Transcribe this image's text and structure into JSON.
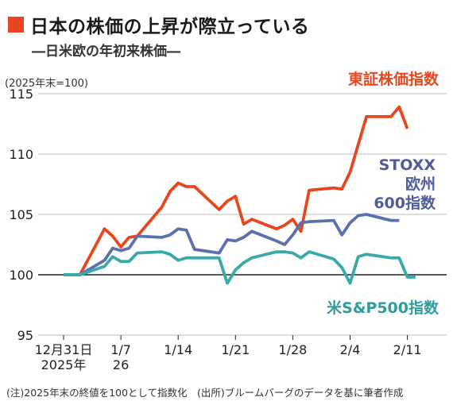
{
  "header": {
    "title": "日本の株価の上昇が際立っている",
    "subtitle": "―日米欧の年初来株価―",
    "unit": "(2025年末=100)"
  },
  "footnote": "(注)2025年末の終値を100として指数化　(出所)ブルームバーグのデータを基に筆者作成",
  "chart_data": {
    "type": "line",
    "ylim": [
      95,
      115
    ],
    "yticks": [
      95,
      100,
      105,
      110,
      115
    ],
    "xticks": [
      {
        "label": "12月31日",
        "label2": "2025年",
        "day": 0
      },
      {
        "label": "1/7",
        "label2": "26",
        "day": 7
      },
      {
        "label": "1/14",
        "label2": "",
        "day": 14
      },
      {
        "label": "1/21",
        "label2": "",
        "day": 21
      },
      {
        "label": "1/28",
        "label2": "",
        "day": 28
      },
      {
        "label": "2/4",
        "label2": "",
        "day": 35
      },
      {
        "label": "2/11",
        "label2": "",
        "day": 42
      }
    ],
    "x": [
      "12/31",
      "1/2",
      "1/5",
      "1/6",
      "1/7",
      "1/8",
      "1/9",
      "1/12",
      "1/13",
      "1/14",
      "1/15",
      "1/16",
      "1/19",
      "1/20",
      "1/21",
      "1/22",
      "1/23",
      "1/26",
      "1/27",
      "1/28",
      "1/29",
      "1/30",
      "2/2",
      "2/3",
      "2/4",
      "2/5",
      "2/6",
      "2/9",
      "2/10",
      "2/11",
      "2/12",
      "2/13"
    ],
    "x_day": [
      0,
      2,
      5,
      6,
      7,
      8,
      9,
      12,
      13,
      14,
      15,
      16,
      19,
      20,
      21,
      22,
      23,
      26,
      27,
      28,
      29,
      30,
      33,
      34,
      35,
      36,
      37,
      40,
      41,
      42,
      43,
      44
    ],
    "series": [
      {
        "name": "東証株価指数",
        "color": "#e8461e",
        "label_color": "#e8461e",
        "values": [
          100,
          100,
          103.8,
          103.2,
          102.3,
          103.1,
          103.2,
          105.6,
          106.9,
          107.6,
          107.3,
          107.3,
          105.4,
          106.1,
          106.5,
          104.2,
          104.6,
          103.8,
          104.1,
          104.6,
          103.6,
          107.0,
          107.2,
          107.1,
          108.5,
          110.8,
          113.1,
          113.1,
          113.9,
          112.1,
          null,
          null
        ]
      },
      {
        "name": "STOXX欧州600指数",
        "name_lines": [
          "STOXX",
          "欧州",
          "600指数"
        ],
        "color": "#5b70ad",
        "label_color": "#4d5d9a",
        "values": [
          100,
          100,
          101.2,
          102.2,
          102.0,
          102.2,
          103.2,
          103.1,
          103.3,
          103.8,
          103.7,
          102.1,
          101.8,
          102.9,
          102.8,
          103.1,
          103.6,
          102.8,
          102.5,
          103.3,
          104.3,
          104.4,
          104.5,
          103.3,
          104.3,
          104.9,
          105.0,
          104.5,
          104.5,
          null,
          null,
          null
        ]
      },
      {
        "name": "米S&P500指数",
        "color": "#3aaaa9",
        "label_color": "#2e9d9c",
        "values": [
          100,
          100,
          100.7,
          101.5,
          101.1,
          101.1,
          101.8,
          101.9,
          101.7,
          101.2,
          101.4,
          101.4,
          101.4,
          99.3,
          100.4,
          101.0,
          101.4,
          101.9,
          101.9,
          101.8,
          101.4,
          101.9,
          101.3,
          100.6,
          99.3,
          101.5,
          101.7,
          101.4,
          101.4,
          99.8,
          99.8,
          null
        ]
      }
    ]
  }
}
